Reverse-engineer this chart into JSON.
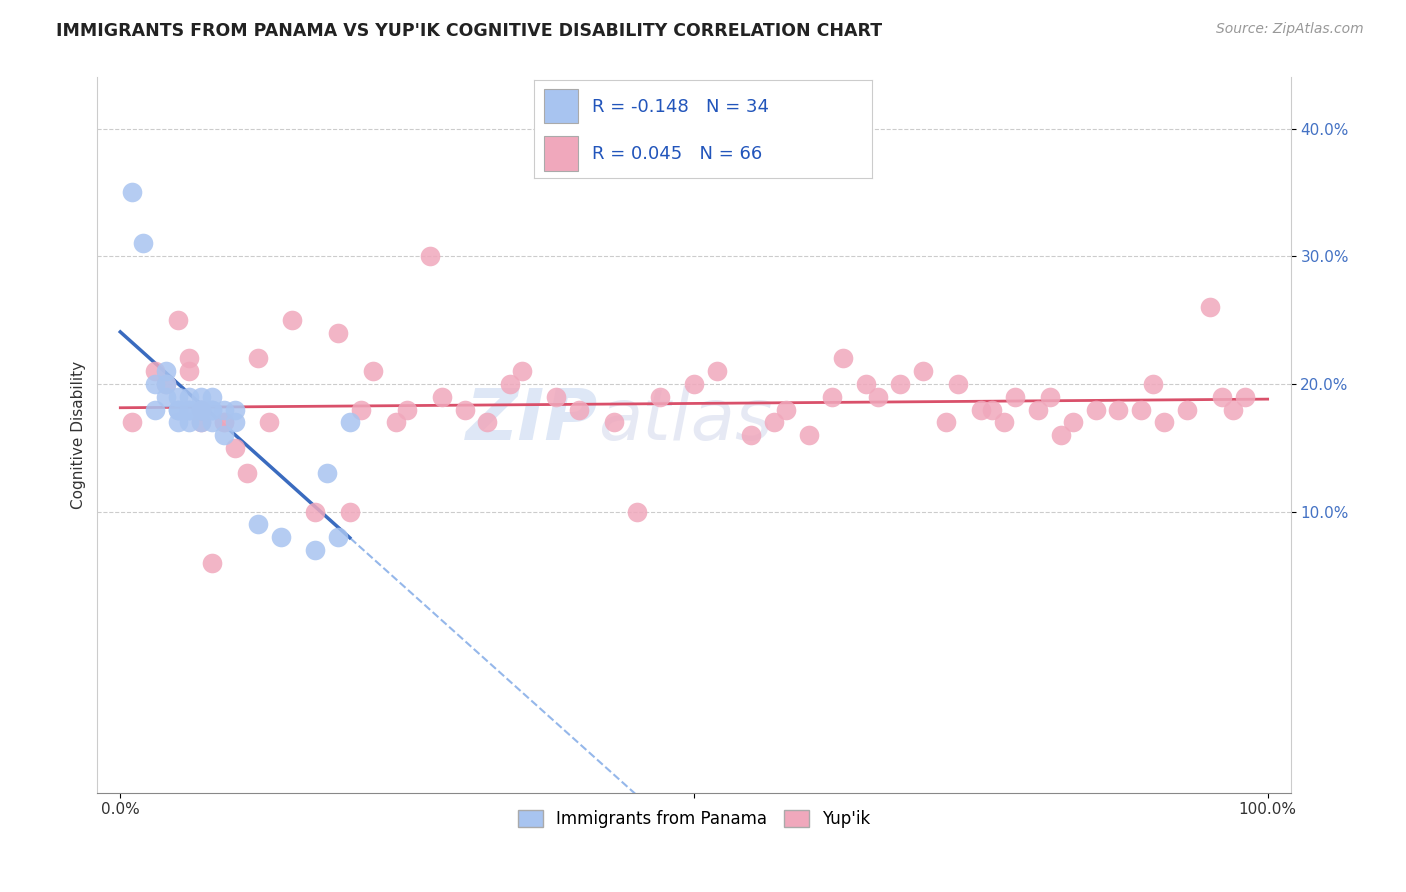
{
  "title": "IMMIGRANTS FROM PANAMA VS YUP'IK COGNITIVE DISABILITY CORRELATION CHART",
  "source": "Source: ZipAtlas.com",
  "ylabel": "Cognitive Disability",
  "legend_bottom": [
    "Immigrants from Panama",
    "Yup'ik"
  ],
  "r_panama": -0.148,
  "n_panama": 34,
  "r_yupik": 0.045,
  "n_yupik": 66,
  "xlim": [
    -0.02,
    1.02
  ],
  "ylim": [
    -0.12,
    0.44
  ],
  "x_ticks": [
    0.0,
    1.0
  ],
  "x_tick_labels": [
    "0.0%",
    "100.0%"
  ],
  "y_ticks": [
    0.1,
    0.2,
    0.3,
    0.4
  ],
  "y_tick_labels": [
    "10.0%",
    "20.0%",
    "30.0%",
    "40.0%"
  ],
  "color_panama": "#a8c4f0",
  "color_yupik": "#f0a8bc",
  "line_color_panama_solid": "#3a6bbf",
  "line_color_panama_dashed": "#8ab0e8",
  "line_color_yupik": "#d9506a",
  "watermark_zip": "ZIP",
  "watermark_atlas": "atlas",
  "panama_x": [
    0.01,
    0.02,
    0.03,
    0.03,
    0.04,
    0.04,
    0.04,
    0.05,
    0.05,
    0.05,
    0.05,
    0.06,
    0.06,
    0.06,
    0.06,
    0.07,
    0.07,
    0.07,
    0.07,
    0.07,
    0.08,
    0.08,
    0.08,
    0.08,
    0.09,
    0.09,
    0.1,
    0.1,
    0.12,
    0.14,
    0.17,
    0.18,
    0.19,
    0.2
  ],
  "panama_y": [
    0.35,
    0.31,
    0.2,
    0.18,
    0.19,
    0.2,
    0.21,
    0.17,
    0.18,
    0.18,
    0.19,
    0.17,
    0.18,
    0.18,
    0.19,
    0.17,
    0.18,
    0.18,
    0.18,
    0.19,
    0.17,
    0.18,
    0.18,
    0.19,
    0.16,
    0.18,
    0.17,
    0.18,
    0.09,
    0.08,
    0.07,
    0.13,
    0.08,
    0.17
  ],
  "yupik_x": [
    0.01,
    0.03,
    0.04,
    0.05,
    0.06,
    0.06,
    0.07,
    0.07,
    0.08,
    0.09,
    0.09,
    0.1,
    0.11,
    0.12,
    0.13,
    0.15,
    0.17,
    0.19,
    0.2,
    0.21,
    0.22,
    0.24,
    0.25,
    0.27,
    0.28,
    0.3,
    0.32,
    0.34,
    0.35,
    0.38,
    0.4,
    0.43,
    0.45,
    0.47,
    0.5,
    0.52,
    0.55,
    0.57,
    0.58,
    0.6,
    0.62,
    0.63,
    0.65,
    0.66,
    0.68,
    0.7,
    0.72,
    0.73,
    0.75,
    0.76,
    0.77,
    0.78,
    0.8,
    0.81,
    0.82,
    0.83,
    0.85,
    0.87,
    0.89,
    0.9,
    0.91,
    0.93,
    0.95,
    0.96,
    0.97,
    0.98
  ],
  "yupik_y": [
    0.17,
    0.21,
    0.2,
    0.25,
    0.22,
    0.21,
    0.18,
    0.17,
    0.06,
    0.17,
    0.17,
    0.15,
    0.13,
    0.22,
    0.17,
    0.25,
    0.1,
    0.24,
    0.1,
    0.18,
    0.21,
    0.17,
    0.18,
    0.3,
    0.19,
    0.18,
    0.17,
    0.2,
    0.21,
    0.19,
    0.18,
    0.17,
    0.1,
    0.19,
    0.2,
    0.21,
    0.16,
    0.17,
    0.18,
    0.16,
    0.19,
    0.22,
    0.2,
    0.19,
    0.2,
    0.21,
    0.17,
    0.2,
    0.18,
    0.18,
    0.17,
    0.19,
    0.18,
    0.19,
    0.16,
    0.17,
    0.18,
    0.18,
    0.18,
    0.2,
    0.17,
    0.18,
    0.26,
    0.19,
    0.18,
    0.19
  ]
}
